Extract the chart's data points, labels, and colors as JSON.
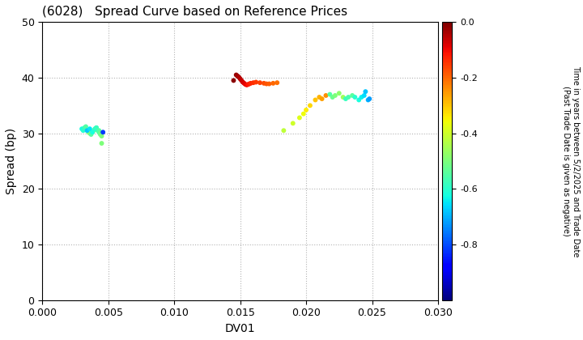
{
  "title": "(6028)   Spread Curve based on Reference Prices",
  "xlabel": "DV01",
  "ylabel": "Spread (bp)",
  "xlim": [
    0.0,
    0.03
  ],
  "ylim": [
    0,
    50
  ],
  "xticks": [
    0.0,
    0.005,
    0.01,
    0.015,
    0.02,
    0.025,
    0.03
  ],
  "yticks": [
    0,
    10,
    20,
    30,
    40,
    50
  ],
  "colorbar_label": "Time in years between 5/2/2025 and Trade Date\n(Past Trade Date is given as negative)",
  "colorbar_vmin": -1.0,
  "colorbar_vmax": 0.0,
  "colorbar_ticks": [
    0.0,
    -0.2,
    -0.4,
    -0.6,
    -0.8
  ],
  "cluster1_dv01": [
    0.003,
    0.0031,
    0.0032,
    0.0033,
    0.0034,
    0.0035,
    0.0036,
    0.0037,
    0.0038,
    0.0039,
    0.004,
    0.0041,
    0.0042,
    0.0043,
    0.0044,
    0.0045,
    0.0034,
    0.0036,
    0.0038,
    0.004,
    0.0041,
    0.0043,
    0.0044,
    0.0045,
    0.0046
  ],
  "cluster1_spread": [
    30.8,
    30.5,
    31.0,
    31.2,
    30.5,
    30.2,
    30.0,
    29.8,
    30.2,
    30.5,
    30.8,
    31.0,
    30.5,
    30.2,
    29.8,
    28.2,
    30.5,
    30.8,
    30.2,
    30.8,
    31.0,
    30.5,
    30.0,
    29.5,
    30.2
  ],
  "cluster1_color": [
    -0.62,
    -0.6,
    -0.58,
    -0.55,
    -0.52,
    -0.5,
    -0.48,
    -0.55,
    -0.52,
    -0.5,
    -0.48,
    -0.6,
    -0.58,
    -0.55,
    -0.52,
    -0.5,
    -0.68,
    -0.65,
    -0.62,
    -0.6,
    -0.58,
    -0.55,
    -0.52,
    -0.5,
    -0.82
  ],
  "cluster2_dv01": [
    0.0145,
    0.0147,
    0.0148,
    0.0149,
    0.015,
    0.0151,
    0.0152,
    0.0153,
    0.0154,
    0.0155,
    0.0156,
    0.0157,
    0.0158,
    0.016,
    0.0162,
    0.0165,
    0.0168,
    0.017,
    0.0172,
    0.0175,
    0.0178
  ],
  "cluster2_spread": [
    39.5,
    40.5,
    40.3,
    40.1,
    39.8,
    39.5,
    39.2,
    39.0,
    38.8,
    38.7,
    38.8,
    38.9,
    39.0,
    39.1,
    39.2,
    39.1,
    39.0,
    38.9,
    38.9,
    39.0,
    39.1
  ],
  "cluster2_color": [
    -0.01,
    -0.02,
    -0.03,
    -0.04,
    -0.05,
    -0.06,
    -0.07,
    -0.08,
    -0.09,
    -0.1,
    -0.11,
    -0.12,
    -0.13,
    -0.14,
    -0.15,
    -0.16,
    -0.17,
    -0.18,
    -0.19,
    -0.2,
    -0.21
  ],
  "cluster3_dv01": [
    0.0183,
    0.019,
    0.0195,
    0.0198,
    0.02,
    0.0203,
    0.0207,
    0.021,
    0.0212,
    0.0215,
    0.0218,
    0.022,
    0.0222,
    0.0225,
    0.0228,
    0.023,
    0.0232,
    0.0235,
    0.0237,
    0.024,
    0.0242,
    0.0244,
    0.0245,
    0.0247,
    0.0248
  ],
  "cluster3_spread": [
    30.5,
    31.8,
    32.8,
    33.5,
    34.2,
    35.0,
    36.0,
    36.5,
    36.2,
    36.8,
    37.0,
    36.5,
    36.8,
    37.2,
    36.5,
    36.2,
    36.5,
    36.8,
    36.5,
    36.0,
    36.5,
    36.8,
    37.5,
    36.0,
    36.2
  ],
  "cluster3_color": [
    -0.42,
    -0.4,
    -0.38,
    -0.36,
    -0.34,
    -0.32,
    -0.3,
    -0.28,
    -0.26,
    -0.24,
    -0.55,
    -0.52,
    -0.5,
    -0.48,
    -0.46,
    -0.58,
    -0.56,
    -0.54,
    -0.6,
    -0.62,
    -0.64,
    -0.66,
    -0.68,
    -0.7,
    -0.72
  ],
  "bg_color": "#ffffff",
  "marker_size": 18,
  "title_fontsize": 11,
  "axis_fontsize": 9,
  "label_fontsize": 10
}
